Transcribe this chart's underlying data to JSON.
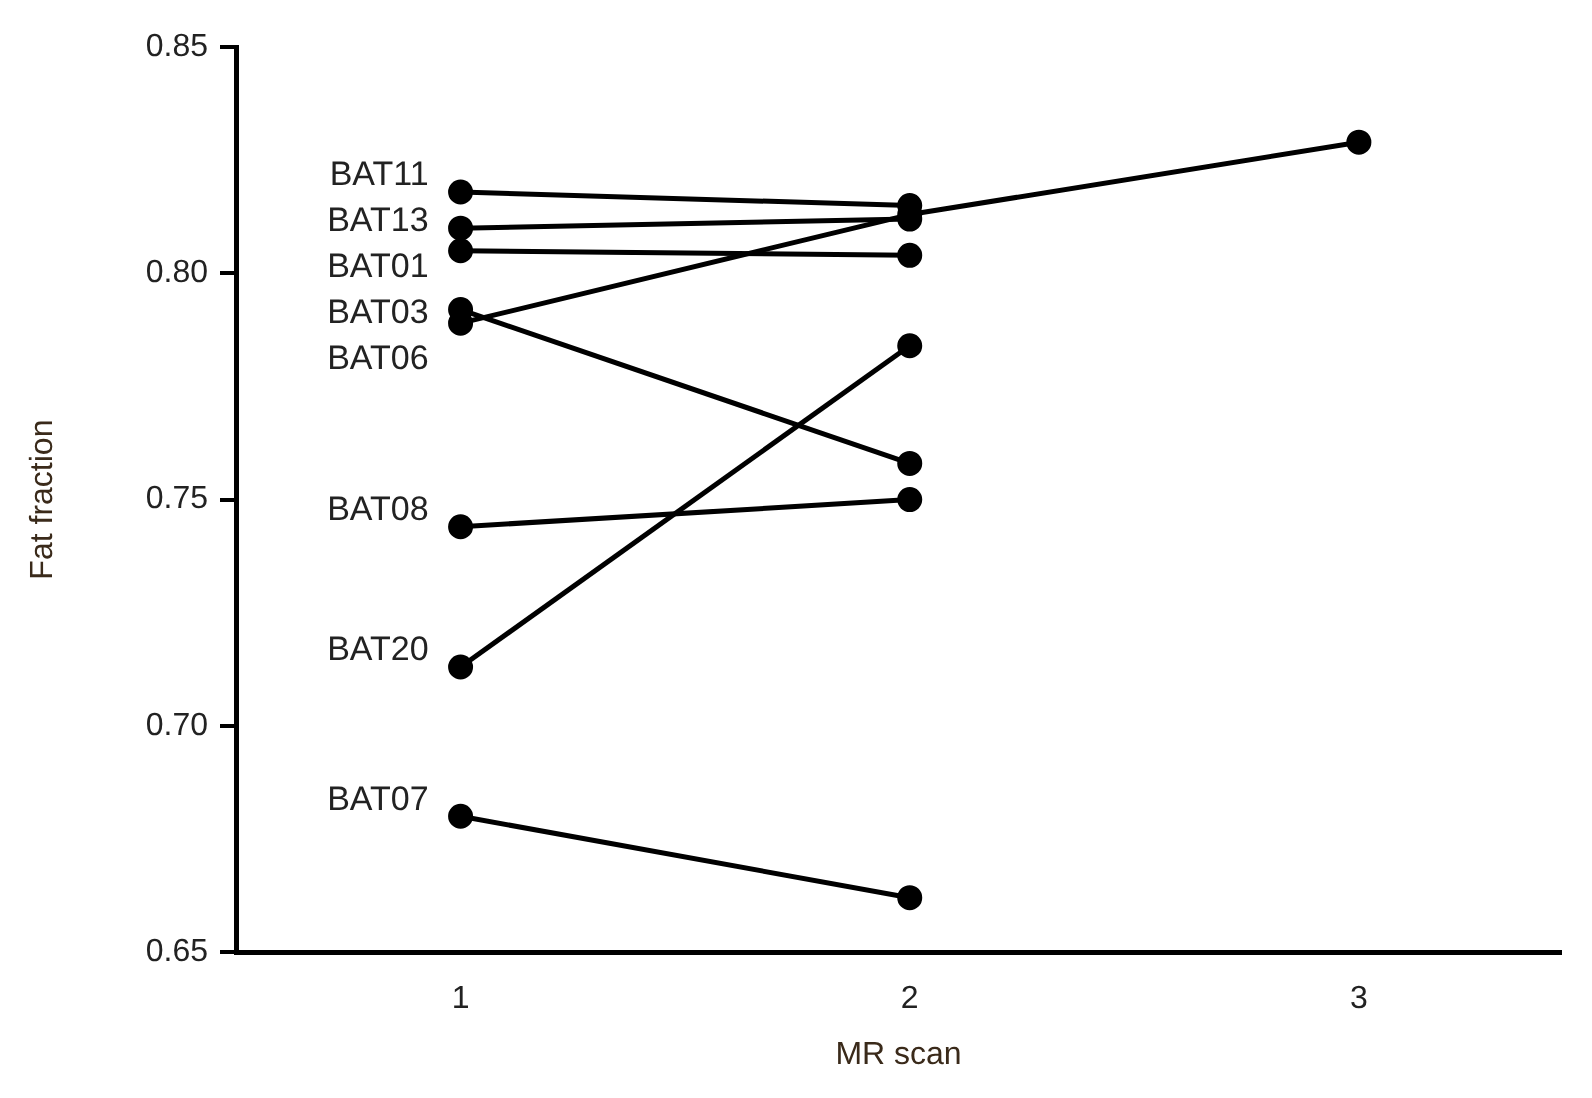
{
  "chart_data": {
    "type": "line",
    "xlabel": "MR scan",
    "ylabel": "Fat fraction",
    "xlim": [
      0.5,
      3.45
    ],
    "xticks": [
      1,
      2,
      3
    ],
    "ylim": [
      0.65,
      0.85
    ],
    "yticks": [
      {
        "value": 0.65,
        "label": "0.65"
      },
      {
        "value": 0.7,
        "label": "0.70"
      },
      {
        "value": 0.75,
        "label": "0.75"
      },
      {
        "value": 0.8,
        "label": "0.80"
      },
      {
        "value": 0.85,
        "label": "0.85"
      }
    ],
    "marker": "circle",
    "line_style": "solid",
    "series": [
      {
        "name": "BAT11",
        "color": "#000000",
        "x": [
          1,
          2
        ],
        "values": [
          0.818,
          0.815
        ]
      },
      {
        "name": "BAT13",
        "color": "#000000",
        "x": [
          1,
          2
        ],
        "values": [
          0.81,
          0.812
        ]
      },
      {
        "name": "BAT01",
        "color": "#000000",
        "x": [
          1,
          2
        ],
        "values": [
          0.805,
          0.804
        ]
      },
      {
        "name": "BAT03",
        "color": "#000000",
        "x": [
          1,
          2
        ],
        "values": [
          0.792,
          0.758
        ]
      },
      {
        "name": "BAT06",
        "color": "#000000",
        "x": [
          1,
          2,
          3
        ],
        "values": [
          0.789,
          0.813,
          0.829
        ]
      },
      {
        "name": "BAT08",
        "color": "#000000",
        "x": [
          1,
          2
        ],
        "values": [
          0.744,
          0.75
        ]
      },
      {
        "name": "BAT20",
        "color": "#000000",
        "x": [
          1,
          2
        ],
        "values": [
          0.713,
          0.784
        ]
      },
      {
        "name": "BAT07",
        "color": "#000000",
        "x": [
          1,
          2
        ],
        "values": [
          0.68,
          0.662
        ]
      }
    ]
  }
}
